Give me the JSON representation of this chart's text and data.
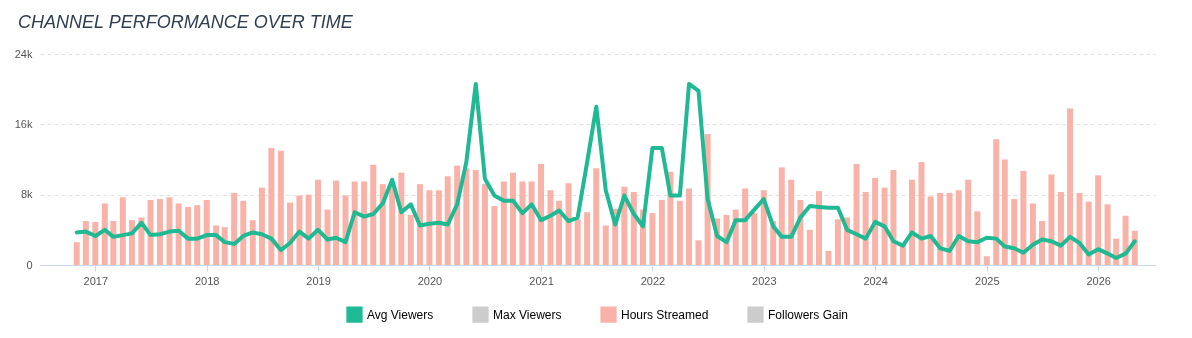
{
  "chart_data": {
    "type": "bar",
    "title": "CHANNEL PERFORMANCE OVER TIME",
    "x": [
      "2016-11",
      "2016-12",
      "2017-01",
      "2017-02",
      "2017-03",
      "2017-04",
      "2017-05",
      "2017-06",
      "2017-07",
      "2017-08",
      "2017-09",
      "2017-10",
      "2017-11",
      "2017-12",
      "2018-01",
      "2018-02",
      "2018-03",
      "2018-04",
      "2018-05",
      "2018-06",
      "2018-07",
      "2018-08",
      "2018-09",
      "2018-10",
      "2018-11",
      "2018-12",
      "2019-01",
      "2019-02",
      "2019-03",
      "2019-04",
      "2019-05",
      "2019-06",
      "2019-07",
      "2019-08",
      "2019-09",
      "2019-10",
      "2019-11",
      "2019-12",
      "2020-01",
      "2020-02",
      "2020-03",
      "2020-04",
      "2020-05",
      "2020-06",
      "2020-07",
      "2020-08",
      "2020-09",
      "2020-10",
      "2020-11",
      "2020-12",
      "2021-01",
      "2021-02",
      "2021-03",
      "2021-04",
      "2021-05",
      "2021-06",
      "2021-07",
      "2021-08",
      "2021-09",
      "2021-10",
      "2021-11",
      "2021-12",
      "2022-01",
      "2022-02",
      "2022-03",
      "2022-04",
      "2022-05",
      "2022-06",
      "2022-07",
      "2022-08",
      "2022-09",
      "2022-10",
      "2022-11",
      "2022-12",
      "2023-01",
      "2023-02",
      "2023-03",
      "2023-04",
      "2023-05",
      "2023-06",
      "2023-07",
      "2023-08",
      "2023-09",
      "2023-10",
      "2023-11",
      "2023-12",
      "2024-01",
      "2024-02",
      "2024-03",
      "2024-04",
      "2024-05",
      "2024-06",
      "2024-07",
      "2024-08",
      "2024-09",
      "2024-10",
      "2024-11",
      "2024-12",
      "2025-01",
      "2025-02",
      "2025-03",
      "2025-04",
      "2025-05",
      "2025-06",
      "2025-07",
      "2025-08",
      "2025-09",
      "2025-10",
      "2025-11",
      "2025-12",
      "2026-01",
      "2026-02",
      "2026-03",
      "2026-04",
      "2026-05"
    ],
    "series": [
      {
        "name": "Avg Viewers",
        "type": "line",
        "color": "#1fb993",
        "values": [
          3700,
          3800,
          3300,
          4000,
          3200,
          3400,
          3600,
          4800,
          3400,
          3500,
          3800,
          3900,
          3000,
          3000,
          3400,
          3400,
          2600,
          2400,
          3300,
          3700,
          3500,
          3000,
          1700,
          2500,
          3800,
          3000,
          4000,
          2900,
          3100,
          2600,
          6000,
          5500,
          5800,
          7000,
          9700,
          6000,
          6900,
          4500,
          4700,
          4800,
          4600,
          6900,
          11700,
          20600,
          9800,
          7900,
          7300,
          7300,
          5900,
          6900,
          5100,
          5600,
          6200,
          5000,
          5400,
          11700,
          18000,
          8500,
          4600,
          7900,
          5800,
          4400,
          13300,
          13300,
          7900,
          7900,
          20600,
          19800,
          7500,
          3300,
          2600,
          5100,
          5100,
          6300,
          7500,
          4400,
          3200,
          3200,
          5400,
          6700,
          6600,
          6500,
          6500,
          4000,
          3500,
          3000,
          4900,
          4400,
          2700,
          2200,
          3700,
          3000,
          3300,
          1900,
          1600,
          3300,
          2700,
          2600,
          3100,
          3000,
          2100,
          1900,
          1400,
          2300,
          2900,
          2700,
          2200,
          3200,
          2500,
          1200,
          1800,
          1300,
          800,
          1300,
          2700
        ]
      },
      {
        "name": "Max Viewers",
        "type": "line",
        "color": "#cccccc",
        "values": [
          null,
          null,
          null,
          null,
          null,
          null,
          null,
          null,
          null,
          null,
          null,
          null,
          null,
          null,
          null,
          null,
          null,
          null,
          null,
          null,
          null,
          null,
          null,
          null,
          null,
          null,
          null,
          null,
          null,
          null,
          null,
          null,
          null,
          null,
          null,
          null,
          null,
          null,
          null,
          null,
          null,
          null,
          null,
          null,
          null,
          null,
          null,
          null,
          null,
          null,
          null,
          null,
          null,
          null,
          null,
          null,
          null,
          null,
          null,
          null,
          null,
          null,
          null,
          null,
          null,
          null,
          null,
          null,
          null,
          null,
          null,
          null,
          null,
          null,
          null,
          null,
          null,
          null,
          null,
          null,
          null,
          null,
          null,
          null,
          null,
          null,
          null,
          null,
          null,
          null,
          null,
          null,
          null,
          null,
          null,
          null,
          null,
          null,
          null,
          null,
          null,
          null,
          null,
          null,
          null,
          null,
          null,
          null,
          null,
          null,
          null,
          null,
          null,
          null,
          null
        ]
      },
      {
        "name": "Hours Streamed",
        "color": "#f9b2a8",
        "values": [
          2600,
          5000,
          4900,
          7000,
          5000,
          7700,
          5100,
          5400,
          7400,
          7500,
          7700,
          7000,
          6600,
          6800,
          7400,
          4500,
          4300,
          8200,
          7300,
          5100,
          8800,
          13300,
          13000,
          7100,
          7900,
          8000,
          9700,
          6300,
          9600,
          7900,
          9500,
          9500,
          11400,
          9200,
          9000,
          10500,
          5700,
          9200,
          8500,
          8500,
          10100,
          11300,
          11000,
          10800,
          9200,
          6700,
          9500,
          10500,
          9500,
          9500,
          11500,
          8500,
          7300,
          9300,
          5200,
          6000,
          11000,
          4500,
          6400,
          8900,
          8300,
          6300,
          5900,
          7400,
          10600,
          7300,
          8700,
          2800,
          14900,
          5300,
          5700,
          6300,
          8700,
          5900,
          8500,
          5000,
          11100,
          9700,
          7400,
          4000,
          8400,
          1600,
          5200,
          5400,
          11500,
          8300,
          9900,
          8800,
          10800,
          2300,
          9700,
          11700,
          7800,
          8200,
          8200,
          8500,
          9700,
          6100,
          1000,
          14300,
          12000,
          7500,
          10700,
          7000,
          5000,
          10300,
          8300,
          17800,
          8200,
          7200,
          10200,
          6900,
          3000,
          5600,
          3900
        ]
      },
      {
        "name": "Followers Gain",
        "color": "#cccccc",
        "values": [
          null,
          null,
          null,
          null,
          null,
          null,
          null,
          null,
          null,
          null,
          null,
          null,
          null,
          null,
          null,
          null,
          null,
          null,
          null,
          null,
          null,
          null,
          null,
          null,
          null,
          null,
          null,
          null,
          null,
          null,
          null,
          null,
          null,
          null,
          null,
          null,
          null,
          null,
          null,
          null,
          null,
          null,
          null,
          null,
          null,
          null,
          null,
          null,
          null,
          null,
          null,
          null,
          null,
          null,
          null,
          null,
          null,
          null,
          null,
          null,
          null,
          null,
          null,
          null,
          null,
          null,
          null,
          null,
          null,
          null,
          null,
          null,
          null,
          null,
          null,
          null,
          null,
          null,
          null,
          null,
          null,
          null,
          null,
          null,
          null,
          null,
          null,
          null,
          null,
          null,
          null,
          null,
          null,
          null,
          null,
          null,
          null,
          null,
          null,
          null,
          null,
          null,
          null,
          null,
          null,
          null,
          null,
          null,
          null,
          null,
          null,
          null,
          null,
          null,
          null
        ]
      }
    ],
    "xlim": [
      "2016-07-20",
      "2026-06-20"
    ],
    "xticks": [
      "2017",
      "2018",
      "2019",
      "2020",
      "2021",
      "2022",
      "2023",
      "2024",
      "2025",
      "2026"
    ],
    "ylim": [
      0,
      24000
    ],
    "yticks": [
      {
        "value": 0,
        "label": "0"
      },
      {
        "value": 8000,
        "label": "8k"
      },
      {
        "value": 16000,
        "label": "16k"
      },
      {
        "value": 24000,
        "label": "24k"
      }
    ],
    "grid": "y",
    "legend": "bottom"
  }
}
